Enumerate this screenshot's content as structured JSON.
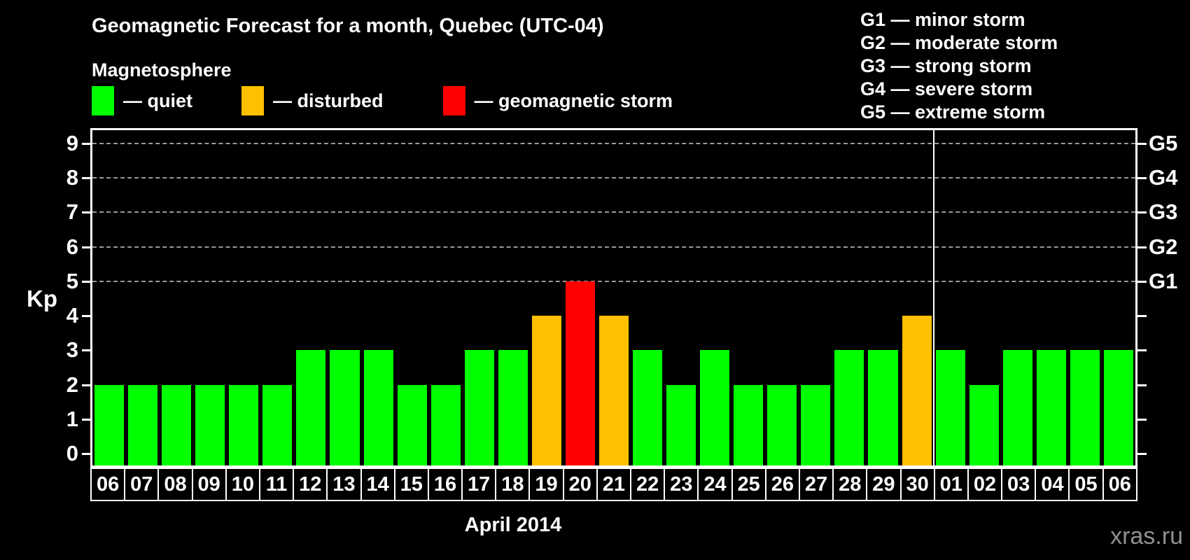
{
  "header": {
    "title": "Geomagnetic Forecast for a month, Quebec (UTC-04)",
    "subtitle": "Magnetosphere"
  },
  "separator": "—",
  "magnetosphere_legend": [
    {
      "key": "quiet",
      "label": "quiet",
      "color": "#00ff00"
    },
    {
      "key": "disturbed",
      "label": "disturbed",
      "color": "#ffc000"
    },
    {
      "key": "storm",
      "label": "geomagnetic storm",
      "color": "#ff0000"
    }
  ],
  "storm_scale_legend": [
    {
      "code": "G1",
      "label": "minor storm"
    },
    {
      "code": "G2",
      "label": "moderate storm"
    },
    {
      "code": "G3",
      "label": "strong storm"
    },
    {
      "code": "G4",
      "label": "severe storm"
    },
    {
      "code": "G5",
      "label": "extreme storm"
    }
  ],
  "watermark": "xras.ru",
  "chart_data": {
    "type": "bar",
    "title": "Geomagnetic Forecast for a month, Quebec (UTC-04)",
    "ylabel": "Kp",
    "xlabel": "April 2014",
    "ylim": [
      0,
      9
    ],
    "yticks_left": [
      0,
      1,
      2,
      3,
      4,
      5,
      6,
      7,
      8,
      9
    ],
    "right_axis": [
      {
        "value": 5,
        "label": "G1"
      },
      {
        "value": 6,
        "label": "G2"
      },
      {
        "value": 7,
        "label": "G3"
      },
      {
        "value": 8,
        "label": "G4"
      },
      {
        "value": 9,
        "label": "G5"
      }
    ],
    "gridlines_at": [
      5,
      6,
      7,
      8,
      9
    ],
    "grid": "dashed horizontal lines at G storm levels only",
    "legend_position": "top",
    "status_colors": {
      "quiet": "#00ff00",
      "disturbed": "#ffc000",
      "storm": "#ff0000"
    },
    "month_boundary_index": 25,
    "days": [
      {
        "date": "06",
        "kp": 2,
        "status": "quiet"
      },
      {
        "date": "07",
        "kp": 2,
        "status": "quiet"
      },
      {
        "date": "08",
        "kp": 2,
        "status": "quiet"
      },
      {
        "date": "09",
        "kp": 2,
        "status": "quiet"
      },
      {
        "date": "10",
        "kp": 2,
        "status": "quiet"
      },
      {
        "date": "11",
        "kp": 2,
        "status": "quiet"
      },
      {
        "date": "12",
        "kp": 3,
        "status": "quiet"
      },
      {
        "date": "13",
        "kp": 3,
        "status": "quiet"
      },
      {
        "date": "14",
        "kp": 3,
        "status": "quiet"
      },
      {
        "date": "15",
        "kp": 2,
        "status": "quiet"
      },
      {
        "date": "16",
        "kp": 2,
        "status": "quiet"
      },
      {
        "date": "17",
        "kp": 3,
        "status": "quiet"
      },
      {
        "date": "18",
        "kp": 3,
        "status": "quiet"
      },
      {
        "date": "19",
        "kp": 4,
        "status": "disturbed"
      },
      {
        "date": "20",
        "kp": 5,
        "status": "storm"
      },
      {
        "date": "21",
        "kp": 4,
        "status": "disturbed"
      },
      {
        "date": "22",
        "kp": 3,
        "status": "quiet"
      },
      {
        "date": "23",
        "kp": 2,
        "status": "quiet"
      },
      {
        "date": "24",
        "kp": 3,
        "status": "quiet"
      },
      {
        "date": "25",
        "kp": 2,
        "status": "quiet"
      },
      {
        "date": "26",
        "kp": 2,
        "status": "quiet"
      },
      {
        "date": "27",
        "kp": 2,
        "status": "quiet"
      },
      {
        "date": "28",
        "kp": 3,
        "status": "quiet"
      },
      {
        "date": "29",
        "kp": 3,
        "status": "quiet"
      },
      {
        "date": "30",
        "kp": 4,
        "status": "disturbed"
      },
      {
        "date": "01",
        "kp": 3,
        "status": "quiet"
      },
      {
        "date": "02",
        "kp": 2,
        "status": "quiet"
      },
      {
        "date": "03",
        "kp": 3,
        "status": "quiet"
      },
      {
        "date": "04",
        "kp": 3,
        "status": "quiet"
      },
      {
        "date": "05",
        "kp": 3,
        "status": "quiet"
      },
      {
        "date": "06",
        "kp": 3,
        "status": "quiet"
      }
    ]
  }
}
